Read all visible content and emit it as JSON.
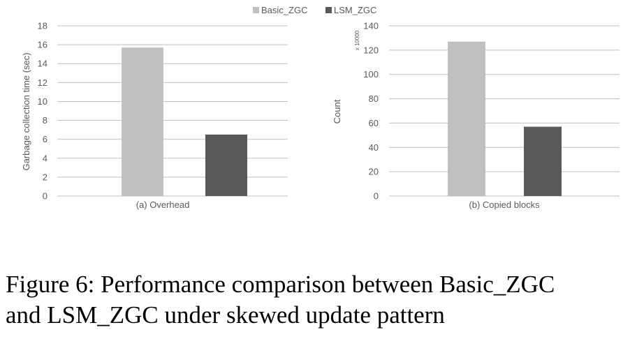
{
  "legend": {
    "placement": "top-center",
    "entries": [
      {
        "name": "Basic_ZGC",
        "color": "#c0c0c0"
      },
      {
        "name": "LSM_ZGC",
        "color": "#595959"
      }
    ]
  },
  "chart_data": [
    {
      "type": "bar",
      "title": "(a) Overhead",
      "categories": [
        ""
      ],
      "series": [
        {
          "name": "Basic_ZGC",
          "values": [
            15.7
          ]
        },
        {
          "name": "LSM_ZGC",
          "values": [
            6.5
          ]
        }
      ],
      "xlabel": "",
      "ylabel": "Garbage collection time (sec)",
      "ylim": [
        0,
        18
      ],
      "yticks": [
        0,
        2,
        4,
        6,
        8,
        10,
        12,
        14,
        16,
        18
      ],
      "grid": true
    },
    {
      "type": "bar",
      "title": "(b) Copied blocks",
      "categories": [
        ""
      ],
      "series": [
        {
          "name": "Basic_ZGC",
          "values": [
            127
          ]
        },
        {
          "name": "LSM_ZGC",
          "values": [
            57
          ]
        }
      ],
      "xlabel": "",
      "ylabel": "Count",
      "y_multiplier": "x 10000",
      "ylim": [
        0,
        140
      ],
      "yticks": [
        0,
        20,
        40,
        60,
        80,
        100,
        120,
        140
      ],
      "grid": true
    }
  ],
  "caption": {
    "line1": "Figure 6: Performance comparison between Basic_ZGC",
    "line2": "and LSM_ZGC under skewed update pattern"
  }
}
